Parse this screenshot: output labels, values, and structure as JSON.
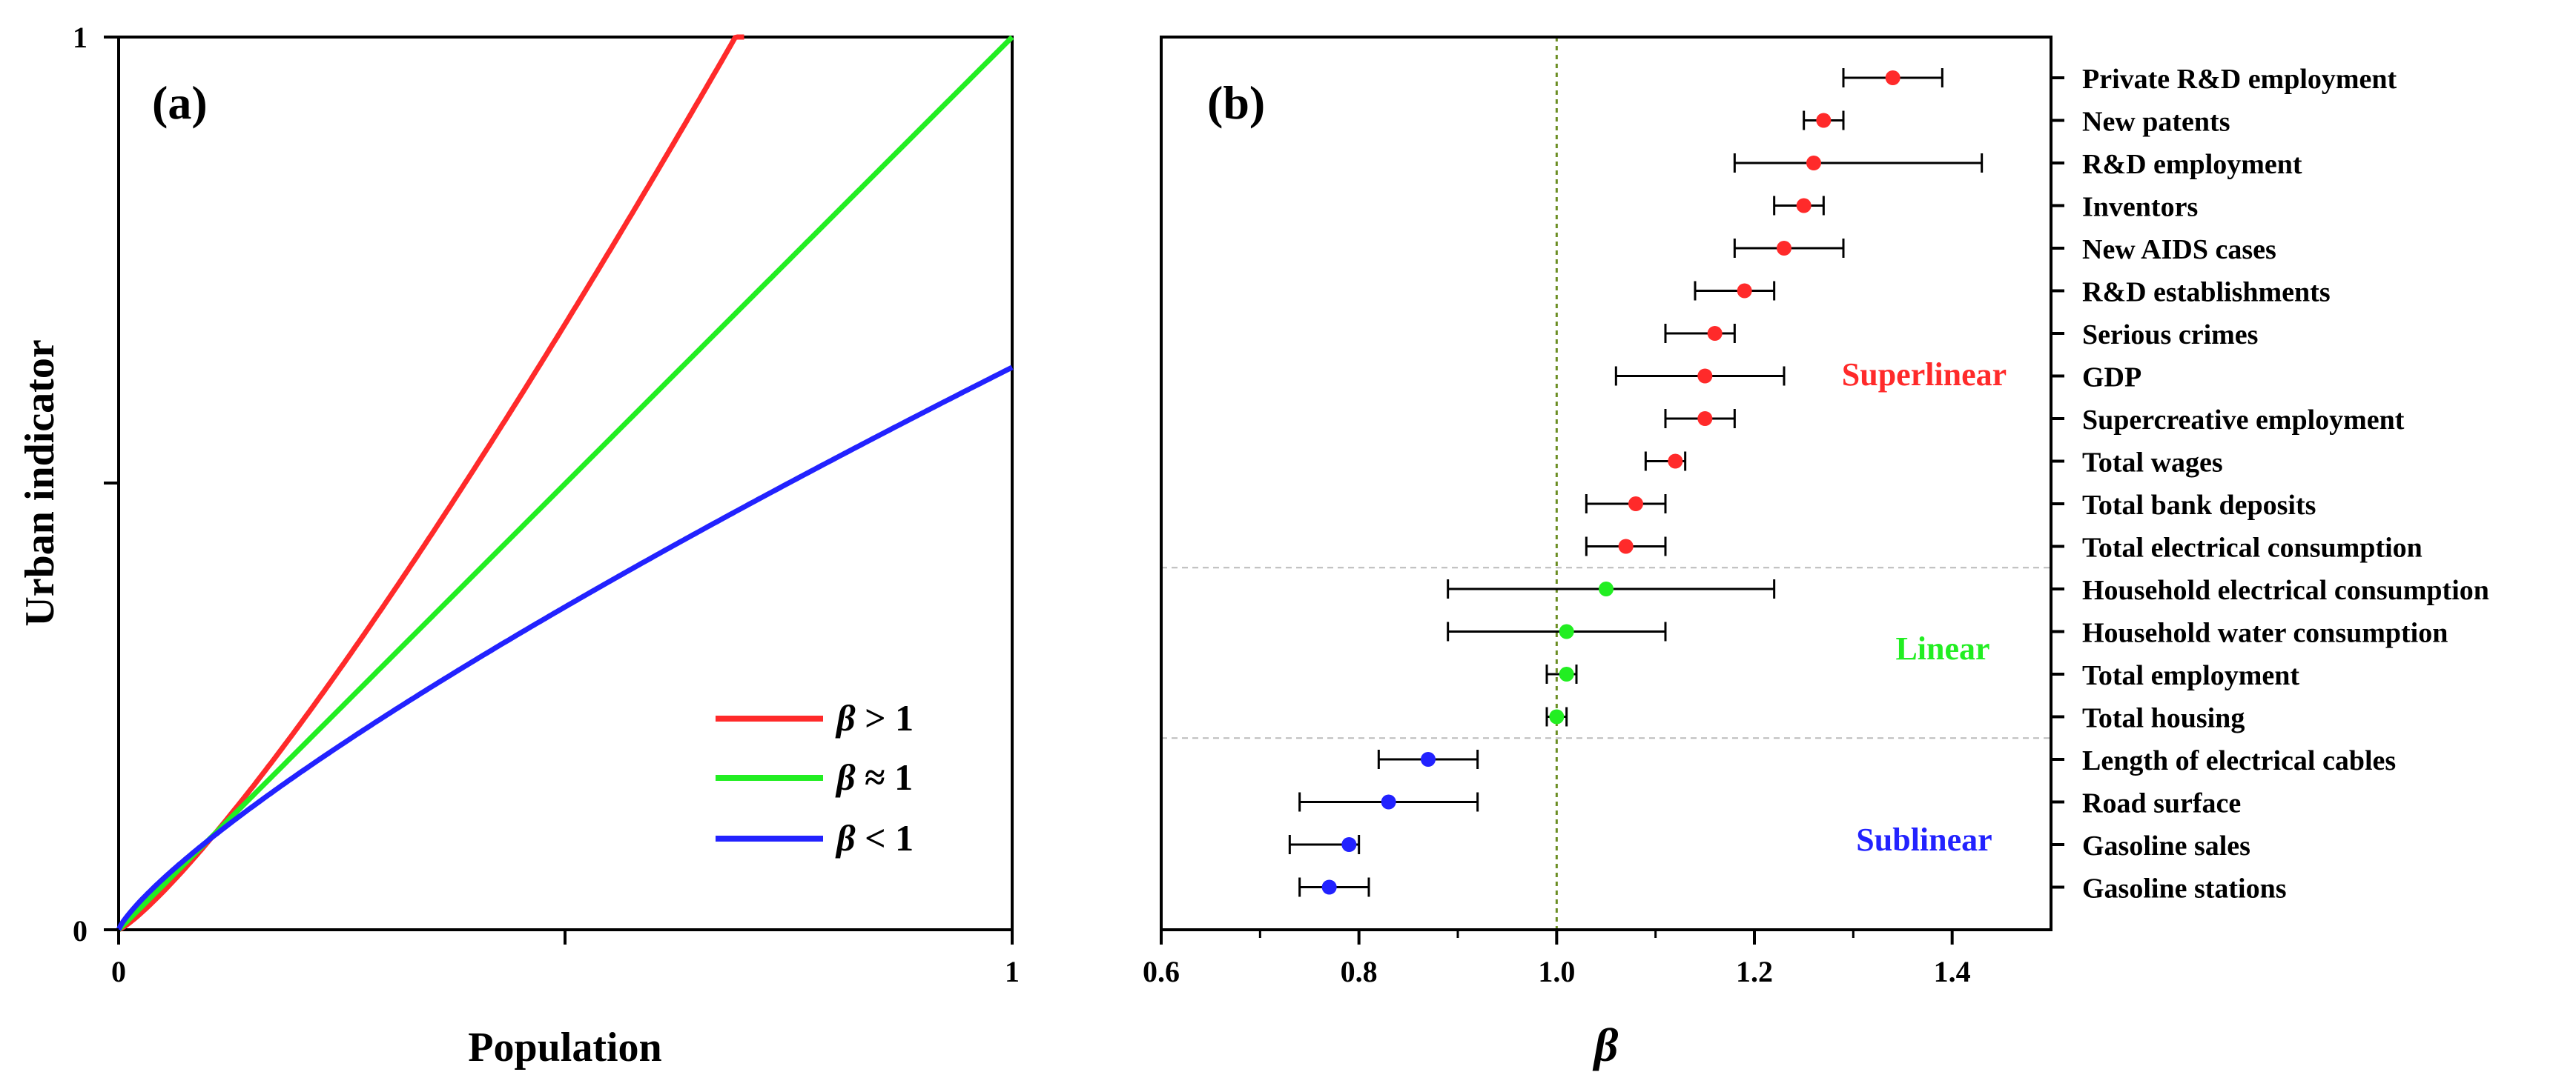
{
  "colors": {
    "superlinear": "#ff2a2a",
    "linear": "#22ee22",
    "sublinear": "#2222ff",
    "reference_line": "#6b8e23",
    "band_divider": "#bbbbbb",
    "axis": "#000000"
  },
  "chart_data": [
    {
      "panel": "a",
      "type": "line",
      "panel_label": "(a)",
      "xlabel": "Population",
      "ylabel": "Urban indicator",
      "xlim": [
        0,
        1
      ],
      "ylim": [
        0,
        1
      ],
      "x_ticks": [
        "0",
        "1"
      ],
      "y_ticks": [
        "0",
        "1"
      ],
      "legend_position": "bottom-right",
      "series": [
        {
          "name": "β > 1",
          "symbol": "β",
          "relation": " > 1",
          "color_key": "superlinear",
          "exponent": 1.2,
          "scale": 1.56
        },
        {
          "name": "β ≈ 1",
          "symbol": "β",
          "relation": " ≈ 1",
          "color_key": "linear",
          "exponent": 1.0,
          "scale": 1.0
        },
        {
          "name": "β < 1",
          "symbol": "β",
          "relation": " < 1",
          "color_key": "sublinear",
          "exponent": 0.8,
          "scale": 0.63
        }
      ]
    },
    {
      "panel": "b",
      "type": "scatter",
      "panel_label": "(b)",
      "xlabel": "β",
      "xlim": [
        0.6,
        1.5
      ],
      "x_ticks": [
        0.6,
        0.8,
        1.0,
        1.2,
        1.4
      ],
      "x_tick_labels": [
        "0.6",
        "0.8",
        "1.0",
        "1.2",
        "1.4"
      ],
      "reference_x": 1.0,
      "band_dividers_after": [
        12,
        16
      ],
      "groups": [
        {
          "label": "Superlinear",
          "color_key": "superlinear",
          "rows": [
            1,
            12
          ]
        },
        {
          "label": "Linear",
          "color_key": "linear",
          "rows": [
            13,
            16
          ]
        },
        {
          "label": "Sublinear",
          "color_key": "sublinear",
          "rows": [
            17,
            20
          ]
        }
      ],
      "points": [
        {
          "label": "Private R&D employment",
          "beta": 1.34,
          "low": 1.29,
          "high": 1.39,
          "group": "superlinear"
        },
        {
          "label": "New patents",
          "beta": 1.27,
          "low": 1.25,
          "high": 1.29,
          "group": "superlinear"
        },
        {
          "label": "R&D employment",
          "beta": 1.26,
          "low": 1.18,
          "high": 1.43,
          "group": "superlinear"
        },
        {
          "label": "Inventors",
          "beta": 1.25,
          "low": 1.22,
          "high": 1.27,
          "group": "superlinear"
        },
        {
          "label": "New AIDS cases",
          "beta": 1.23,
          "low": 1.18,
          "high": 1.29,
          "group": "superlinear"
        },
        {
          "label": "R&D establishments",
          "beta": 1.19,
          "low": 1.14,
          "high": 1.22,
          "group": "superlinear"
        },
        {
          "label": "Serious crimes",
          "beta": 1.16,
          "low": 1.11,
          "high": 1.18,
          "group": "superlinear"
        },
        {
          "label": "GDP",
          "beta": 1.15,
          "low": 1.06,
          "high": 1.23,
          "group": "superlinear"
        },
        {
          "label": "Supercreative employment",
          "beta": 1.15,
          "low": 1.11,
          "high": 1.18,
          "group": "superlinear"
        },
        {
          "label": "Total wages",
          "beta": 1.12,
          "low": 1.09,
          "high": 1.13,
          "group": "superlinear"
        },
        {
          "label": "Total bank deposits",
          "beta": 1.08,
          "low": 1.03,
          "high": 1.11,
          "group": "superlinear"
        },
        {
          "label": "Total electrical consumption",
          "beta": 1.07,
          "low": 1.03,
          "high": 1.11,
          "group": "superlinear"
        },
        {
          "label": "Household electrical consumption",
          "beta": 1.05,
          "low": 0.89,
          "high": 1.22,
          "group": "linear"
        },
        {
          "label": "Household water consumption",
          "beta": 1.01,
          "low": 0.89,
          "high": 1.11,
          "group": "linear"
        },
        {
          "label": "Total employment",
          "beta": 1.01,
          "low": 0.99,
          "high": 1.02,
          "group": "linear"
        },
        {
          "label": "Total housing",
          "beta": 1.0,
          "low": 0.99,
          "high": 1.01,
          "group": "linear"
        },
        {
          "label": "Length of electrical cables",
          "beta": 0.87,
          "low": 0.82,
          "high": 0.92,
          "group": "sublinear"
        },
        {
          "label": "Road surface",
          "beta": 0.83,
          "low": 0.74,
          "high": 0.92,
          "group": "sublinear"
        },
        {
          "label": "Gasoline sales",
          "beta": 0.79,
          "low": 0.73,
          "high": 0.8,
          "group": "sublinear"
        },
        {
          "label": "Gasoline stations",
          "beta": 0.77,
          "low": 0.74,
          "high": 0.81,
          "group": "sublinear"
        }
      ]
    }
  ]
}
